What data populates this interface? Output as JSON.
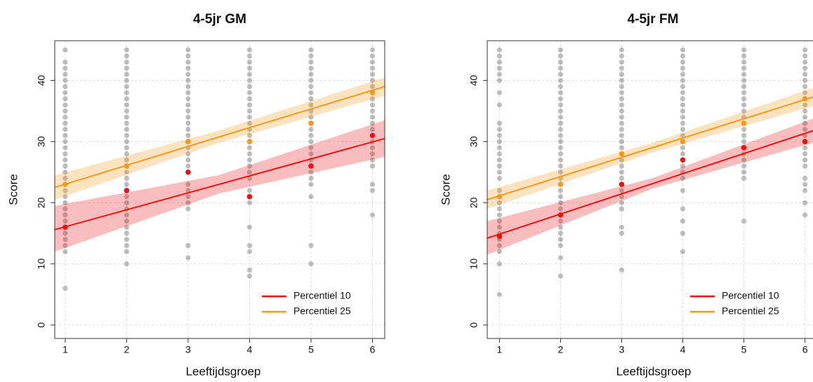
{
  "chart_data": [
    {
      "type": "scatter",
      "title": "4-5jr GM",
      "xlabel": "Leeftijdsgroep",
      "ylabel": "Score",
      "xlim": [
        0.83,
        6.2
      ],
      "ylim": [
        -2.2,
        46.5
      ],
      "xticks": [
        1,
        2,
        3,
        4,
        5,
        6
      ],
      "yticks": [
        0,
        10,
        20,
        30,
        40
      ],
      "grid": true,
      "legend": "bottom-right",
      "point_color": "#6e6e6e",
      "x": [
        1,
        2,
        3,
        4,
        5,
        6
      ],
      "groups": [
        {
          "x": 1,
          "scores": [
            6,
            12,
            13,
            14,
            15,
            16,
            17,
            18,
            19,
            20,
            21,
            22,
            23,
            24,
            25,
            26,
            27,
            28,
            29,
            30,
            31,
            32,
            33,
            34,
            35,
            36,
            37,
            38,
            39,
            40,
            41,
            42,
            43,
            45
          ]
        },
        {
          "x": 2,
          "scores": [
            10,
            12,
            13,
            14,
            15,
            16,
            17,
            18,
            19,
            20,
            21,
            22,
            23,
            24,
            25,
            26,
            27,
            28,
            29,
            30,
            31,
            32,
            33,
            34,
            35,
            36,
            37,
            38,
            39,
            40,
            41,
            42,
            43,
            44,
            45
          ]
        },
        {
          "x": 3,
          "scores": [
            11,
            13,
            19,
            20,
            21,
            22,
            23,
            25,
            26,
            27,
            28,
            29,
            30,
            31,
            32,
            33,
            34,
            35,
            36,
            37,
            38,
            39,
            40,
            41,
            42,
            43,
            44,
            45
          ]
        },
        {
          "x": 4,
          "scores": [
            8,
            9,
            12,
            13,
            16,
            20,
            22,
            24,
            25,
            26,
            27,
            28,
            29,
            30,
            31,
            32,
            33,
            34,
            35,
            36,
            37,
            38,
            39,
            40,
            41,
            42,
            43,
            44,
            45
          ]
        },
        {
          "x": 5,
          "scores": [
            10,
            13,
            21,
            23,
            24,
            25,
            26,
            27,
            28,
            29,
            30,
            31,
            32,
            33,
            34,
            35,
            36,
            37,
            38,
            39,
            40,
            41,
            42,
            43,
            44,
            45
          ]
        },
        {
          "x": 6,
          "scores": [
            18,
            22,
            23,
            26,
            27,
            28,
            29,
            30,
            31,
            32,
            33,
            34,
            35,
            36,
            37,
            38,
            39,
            40,
            41,
            42,
            43,
            44,
            45
          ]
        }
      ],
      "series": [
        {
          "name": "Percentiel 10",
          "color": "#ee1111",
          "values": [
            16,
            22,
            25,
            21,
            26,
            31
          ],
          "fit": {
            "x": [
              0.83,
              3.5,
              6.2
            ],
            "values": [
              15.6,
              23,
              30.5
            ],
            "lower": [
              12,
              21.5,
              27.5
            ],
            "upper": [
              19.5,
              24.5,
              33.5
            ]
          }
        },
        {
          "name": "Percentiel 25",
          "color": "#f39a1e",
          "values": [
            23,
            26,
            30,
            30,
            33,
            38
          ],
          "fit": {
            "x": [
              0.83,
              3.5,
              6.2
            ],
            "values": [
              22.5,
              30.75,
              39
            ],
            "lower": [
              20.5,
              29.8,
              37.5
            ],
            "upper": [
              24.5,
              31.8,
              40.5
            ]
          }
        }
      ]
    },
    {
      "type": "scatter",
      "title": "4-5jr FM",
      "xlabel": "Leeftijdsgroep",
      "ylabel": "Score",
      "xlim": [
        0.8,
        6.2
      ],
      "ylim": [
        -2.2,
        46.5
      ],
      "xticks": [
        1,
        2,
        3,
        4,
        5,
        6
      ],
      "yticks": [
        0,
        10,
        20,
        30,
        40
      ],
      "grid": true,
      "legend": "bottom-right",
      "point_color": "#6e6e6e",
      "x": [
        1,
        2,
        3,
        4,
        5,
        6
      ],
      "groups": [
        {
          "x": 1,
          "scores": [
            5,
            10,
            12,
            13,
            14,
            15,
            16,
            17,
            18,
            19,
            20,
            22,
            24,
            25,
            26,
            27,
            28,
            29,
            30,
            31,
            32,
            33,
            36,
            38,
            40,
            41,
            42,
            43,
            44,
            45
          ]
        },
        {
          "x": 2,
          "scores": [
            8,
            11,
            13,
            14,
            15,
            16,
            17,
            18,
            19,
            20,
            21,
            22,
            23,
            24,
            25,
            26,
            27,
            28,
            29,
            30,
            31,
            32,
            33,
            34,
            35,
            36,
            37,
            38,
            39,
            40,
            41,
            42,
            43,
            44,
            45
          ]
        },
        {
          "x": 3,
          "scores": [
            9,
            15,
            16,
            19,
            20,
            21,
            22,
            23,
            24,
            25,
            26,
            27,
            28,
            29,
            30,
            31,
            32,
            33,
            34,
            35,
            36,
            37,
            38,
            39,
            40,
            41,
            42,
            43,
            44,
            45
          ]
        },
        {
          "x": 4,
          "scores": [
            12,
            15,
            17,
            19,
            22,
            24,
            25,
            26,
            27,
            28,
            29,
            30,
            31,
            32,
            33,
            34,
            35,
            36,
            37,
            38,
            39,
            40,
            41,
            42,
            43,
            44,
            45
          ]
        },
        {
          "x": 5,
          "scores": [
            17,
            24,
            25,
            26,
            27,
            28,
            29,
            30,
            31,
            32,
            33,
            34,
            35,
            36,
            37,
            38,
            39,
            40,
            41,
            42,
            43,
            44,
            45
          ]
        },
        {
          "x": 6,
          "scores": [
            18,
            20,
            22,
            23,
            24,
            26,
            27,
            28,
            29,
            30,
            31,
            32,
            33,
            34,
            35,
            36,
            37,
            38,
            39,
            40,
            41,
            42,
            43,
            44,
            45
          ]
        }
      ],
      "series": [
        {
          "name": "Percentiel 10",
          "color": "#ee1111",
          "values": [
            14.5,
            18,
            23,
            27,
            29,
            30
          ],
          "fit": {
            "x": [
              0.8,
              3.5,
              6.2
            ],
            "values": [
              14.2,
              23.1,
              32
            ],
            "lower": [
              11.5,
              22.3,
              30
            ],
            "upper": [
              17,
              24,
              34
            ]
          }
        },
        {
          "name": "Percentiel 25",
          "color": "#f39a1e",
          "values": [
            21,
            23,
            28,
            30,
            33,
            37
          ],
          "fit": {
            "x": [
              0.8,
              3.5,
              6.2
            ],
            "values": [
              20.5,
              29,
              37.5
            ],
            "lower": [
              19,
              28.2,
              36
            ],
            "upper": [
              22,
              29.8,
              39
            ]
          }
        }
      ]
    }
  ]
}
